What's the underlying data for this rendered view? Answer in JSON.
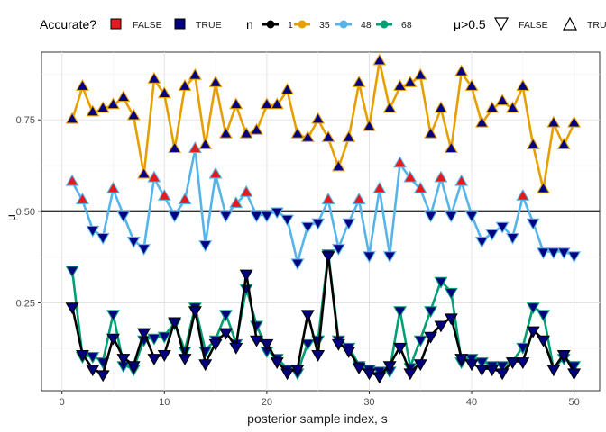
{
  "chart_data": {
    "type": "line",
    "xlabel": "posterior sample index, s",
    "ylabel": "μ",
    "xlim": [
      -2,
      52.5
    ],
    "ylim": [
      0.01,
      0.935
    ],
    "x_ticks": [
      0,
      10,
      20,
      30,
      40,
      50
    ],
    "y_ticks": [
      0.25,
      0.5,
      0.75
    ],
    "y_tick_labels": [
      "0.25",
      "0.50",
      "0.75"
    ],
    "reference_line": {
      "y": 0.5,
      "color": "#333333"
    },
    "grid": true,
    "legend_position": "top",
    "legend": {
      "accurate": {
        "title": "Accurate?",
        "entries": [
          {
            "label": "FALSE",
            "color": "#E41A1C"
          },
          {
            "label": "TRUE",
            "color": "#000080"
          }
        ]
      },
      "n": {
        "title": "n",
        "entries": [
          {
            "label": "1",
            "color": "#000000"
          },
          {
            "label": "35",
            "color": "#E69F00"
          },
          {
            "label": "48",
            "color": "#56B4E9"
          },
          {
            "label": "68",
            "color": "#009E73"
          }
        ]
      },
      "mu": {
        "title": "μ>0.5",
        "entries": [
          {
            "label": "FALSE",
            "shape": "triangle-down"
          },
          {
            "label": "TRUE",
            "shape": "triangle-up"
          }
        ]
      }
    },
    "x": [
      1,
      2,
      3,
      4,
      5,
      6,
      7,
      8,
      9,
      10,
      11,
      12,
      13,
      14,
      15,
      16,
      17,
      18,
      19,
      20,
      21,
      22,
      23,
      24,
      25,
      26,
      27,
      28,
      29,
      30,
      31,
      32,
      33,
      34,
      35,
      36,
      37,
      38,
      39,
      40,
      41,
      42,
      43,
      44,
      45,
      46,
      47,
      48,
      49,
      50
    ],
    "series": [
      {
        "name": "68",
        "color": "#009E73",
        "values": [
          0.34,
          0.105,
          0.105,
          0.09,
          0.22,
          0.08,
          0.07,
          0.15,
          0.155,
          0.16,
          0.195,
          0.12,
          0.24,
          0.12,
          0.15,
          0.22,
          0.14,
          0.29,
          0.19,
          0.12,
          0.1,
          0.07,
          0.06,
          0.14,
          0.15,
          0.385,
          0.15,
          0.13,
          0.08,
          0.07,
          0.065,
          0.065,
          0.23,
          0.075,
          0.15,
          0.23,
          0.31,
          0.28,
          0.09,
          0.1,
          0.09,
          0.08,
          0.08,
          0.09,
          0.13,
          0.24,
          0.22,
          0.07,
          0.1,
          0.08
        ]
      },
      {
        "name": "1",
        "color": "#000000",
        "values": [
          0.24,
          0.11,
          0.07,
          0.055,
          0.155,
          0.1,
          0.08,
          0.17,
          0.1,
          0.11,
          0.2,
          0.1,
          0.23,
          0.085,
          0.14,
          0.17,
          0.13,
          0.33,
          0.15,
          0.14,
          0.09,
          0.06,
          0.07,
          0.22,
          0.11,
          0.38,
          0.14,
          0.12,
          0.075,
          0.06,
          0.05,
          0.08,
          0.13,
          0.06,
          0.085,
          0.16,
          0.19,
          0.21,
          0.1,
          0.085,
          0.07,
          0.07,
          0.06,
          0.09,
          0.09,
          0.175,
          0.15,
          0.07,
          0.11,
          0.06
        ]
      },
      {
        "name": "35",
        "color": "#E69F00",
        "values": [
          0.75,
          0.84,
          0.77,
          0.78,
          0.79,
          0.81,
          0.76,
          0.6,
          0.86,
          0.82,
          0.67,
          0.84,
          0.87,
          0.68,
          0.85,
          0.71,
          0.79,
          0.71,
          0.72,
          0.79,
          0.79,
          0.83,
          0.71,
          0.7,
          0.75,
          0.7,
          0.62,
          0.7,
          0.85,
          0.73,
          0.91,
          0.78,
          0.84,
          0.85,
          0.87,
          0.71,
          0.78,
          0.67,
          0.88,
          0.84,
          0.74,
          0.78,
          0.8,
          0.78,
          0.84,
          0.68,
          0.56,
          0.74,
          0.68,
          0.74
        ]
      },
      {
        "name": "48",
        "color": "#56B4E9",
        "values": [
          0.58,
          0.53,
          0.45,
          0.43,
          0.56,
          0.49,
          0.42,
          0.4,
          0.59,
          0.54,
          0.49,
          0.53,
          0.67,
          0.41,
          0.6,
          0.49,
          0.52,
          0.55,
          0.49,
          0.49,
          0.5,
          0.48,
          0.36,
          0.46,
          0.47,
          0.53,
          0.4,
          0.47,
          0.53,
          0.38,
          0.56,
          0.38,
          0.63,
          0.59,
          0.56,
          0.49,
          0.59,
          0.49,
          0.58,
          0.49,
          0.42,
          0.44,
          0.46,
          0.43,
          0.54,
          0.47,
          0.39,
          0.39,
          0.39,
          0.38
        ]
      }
    ]
  }
}
